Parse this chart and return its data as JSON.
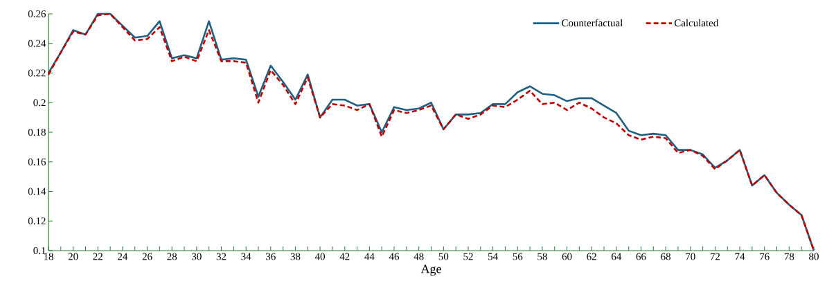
{
  "chart_data": {
    "type": "line",
    "xlabel": "Age",
    "x": [
      18,
      19,
      20,
      21,
      22,
      23,
      24,
      25,
      26,
      27,
      28,
      29,
      30,
      31,
      32,
      33,
      34,
      35,
      36,
      37,
      38,
      39,
      40,
      41,
      42,
      43,
      44,
      45,
      46,
      47,
      48,
      49,
      50,
      51,
      52,
      53,
      54,
      55,
      56,
      57,
      58,
      59,
      60,
      61,
      62,
      63,
      64,
      65,
      66,
      67,
      68,
      69,
      70,
      71,
      72,
      73,
      74,
      75,
      76,
      77,
      78,
      79,
      80
    ],
    "series": [
      {
        "name": "Counterfactual",
        "color": "#1f5f7f",
        "line_style": "solid",
        "values": [
          0.22,
          0.234,
          0.249,
          0.246,
          0.26,
          0.26,
          0.252,
          0.244,
          0.245,
          0.255,
          0.23,
          0.232,
          0.23,
          0.255,
          0.229,
          0.23,
          0.229,
          0.204,
          0.225,
          0.214,
          0.202,
          0.219,
          0.19,
          0.202,
          0.202,
          0.198,
          0.199,
          0.18,
          0.197,
          0.195,
          0.196,
          0.2,
          0.182,
          0.192,
          0.192,
          0.193,
          0.199,
          0.199,
          0.207,
          0.211,
          0.206,
          0.205,
          0.201,
          0.203,
          0.203,
          0.198,
          0.193,
          0.181,
          0.178,
          0.179,
          0.178,
          0.168,
          0.168,
          0.165,
          0.156,
          0.161,
          0.168,
          0.144,
          0.151,
          0.139,
          0.131,
          0.124,
          0.1
        ]
      },
      {
        "name": "Calculated",
        "color": "#c00000",
        "line_style": "dashed",
        "values": [
          0.219,
          0.234,
          0.248,
          0.246,
          0.259,
          0.26,
          0.251,
          0.242,
          0.243,
          0.251,
          0.228,
          0.231,
          0.228,
          0.249,
          0.228,
          0.228,
          0.227,
          0.2,
          0.222,
          0.212,
          0.199,
          0.217,
          0.19,
          0.199,
          0.198,
          0.195,
          0.199,
          0.177,
          0.195,
          0.193,
          0.195,
          0.198,
          0.182,
          0.192,
          0.189,
          0.192,
          0.198,
          0.197,
          0.202,
          0.208,
          0.199,
          0.2,
          0.195,
          0.2,
          0.196,
          0.19,
          0.186,
          0.178,
          0.175,
          0.177,
          0.176,
          0.166,
          0.168,
          0.164,
          0.155,
          0.161,
          0.168,
          0.144,
          0.151,
          0.139,
          0.131,
          0.124,
          0.1
        ]
      }
    ],
    "xlim": [
      18,
      80
    ],
    "xticks": [
      18,
      {
        "value": 19,
        "label": null
      },
      20,
      {
        "value": 21,
        "label": null
      },
      22,
      {
        "value": 23,
        "label": null
      },
      24,
      {
        "value": 25,
        "label": null
      },
      26,
      {
        "value": 27,
        "label": null
      },
      28,
      {
        "value": 29,
        "label": null
      },
      30,
      {
        "value": 31,
        "label": null
      },
      32,
      {
        "value": 33,
        "label": null
      },
      34,
      {
        "value": 35,
        "label": null
      },
      36,
      {
        "value": 37,
        "label": null
      },
      38,
      {
        "value": 39,
        "label": null
      },
      40,
      {
        "value": 41,
        "label": null
      },
      42,
      {
        "value": 43,
        "label": null
      },
      44,
      {
        "value": 45,
        "label": null
      },
      46,
      {
        "value": 47,
        "label": null
      },
      48,
      {
        "value": 49,
        "label": null
      },
      50,
      {
        "value": 51,
        "label": null
      },
      52,
      {
        "value": 53,
        "label": null
      },
      54,
      {
        "value": 55,
        "label": null
      },
      56,
      {
        "value": 57,
        "label": null
      },
      58,
      {
        "value": 59,
        "label": null
      },
      60,
      {
        "value": 61,
        "label": null
      },
      62,
      {
        "value": 63,
        "label": null
      },
      64,
      {
        "value": 65,
        "label": null
      },
      66,
      {
        "value": 67,
        "label": null
      },
      68,
      {
        "value": 69,
        "label": null
      },
      70,
      {
        "value": 71,
        "label": null
      },
      72,
      {
        "value": 73,
        "label": null
      },
      74,
      {
        "value": 75,
        "label": null
      },
      76,
      {
        "value": 77,
        "label": null
      },
      78,
      {
        "value": 79,
        "label": null
      },
      80
    ],
    "ylim": [
      0.1,
      0.26
    ],
    "yticks": [
      0.1,
      0.12,
      0.14,
      0.16,
      0.18,
      0.2,
      0.22,
      0.24,
      0.26
    ],
    "grid": false,
    "legend": "top right",
    "marker": "none"
  }
}
